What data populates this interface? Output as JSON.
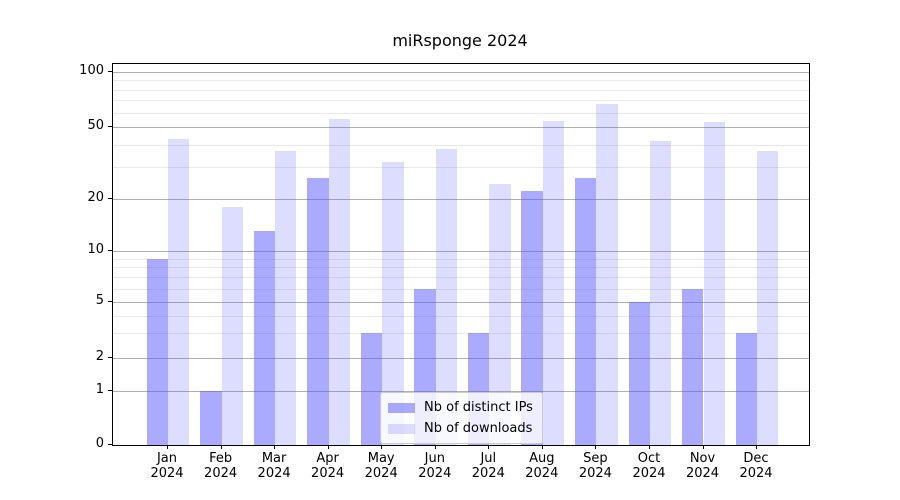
{
  "title": "miRsponge 2024",
  "accent_color": "#5555ff",
  "chart_data": {
    "type": "bar",
    "title": "miRsponge 2024",
    "categories": [
      "Jan 2024",
      "Feb 2024",
      "Mar 2024",
      "Apr 2024",
      "May 2024",
      "Jun 2024",
      "Jul 2024",
      "Aug 2024",
      "Sep 2024",
      "Oct 2024",
      "Nov 2024",
      "Dec 2024"
    ],
    "series": [
      {
        "name": "Nb of distinct IPs",
        "values": [
          9,
          1,
          13,
          26,
          3,
          6,
          3,
          22,
          26,
          5,
          6,
          3
        ],
        "color": "#5555ff",
        "alpha": 0.5
      },
      {
        "name": "Nb of downloads",
        "values": [
          43,
          18,
          37,
          55,
          32,
          38,
          24,
          54,
          67,
          42,
          53,
          37
        ],
        "color": "#5555ff",
        "alpha": 0.2
      }
    ],
    "xlabel": "",
    "ylabel": "",
    "yscale": "symlog",
    "ylim": [
      0,
      110
    ],
    "y_ticks": [
      0,
      1,
      2,
      5,
      10,
      20,
      50,
      100
    ],
    "y_minor_gridlines": [
      3,
      4,
      6,
      7,
      8,
      9,
      30,
      40,
      60,
      70,
      80,
      90
    ],
    "grid": true,
    "legend_position": "lower center",
    "colors": {
      "major_grid": "#b0b0b0",
      "minor_grid": "#e9e9e9",
      "axis": "#000000",
      "background": "#ffffff"
    }
  }
}
